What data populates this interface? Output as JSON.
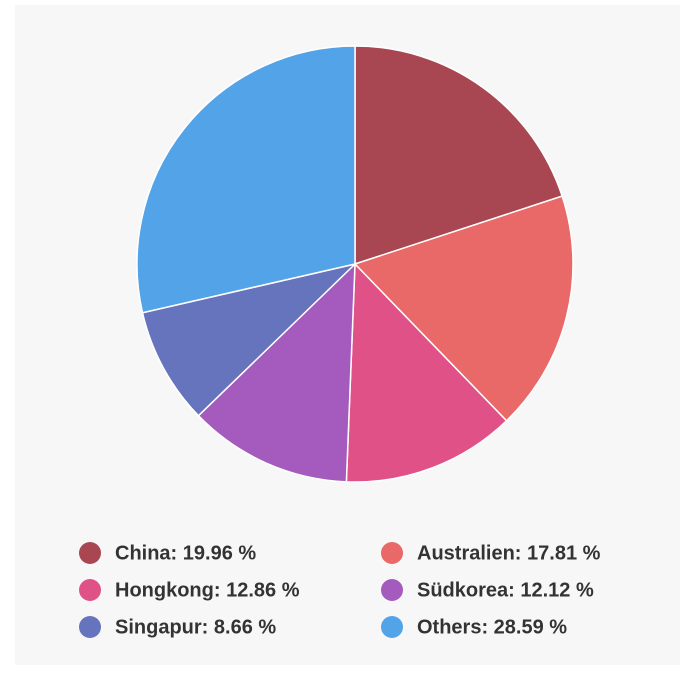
{
  "chart_data": {
    "type": "pie",
    "values": [
      19.96,
      17.81,
      12.86,
      12.12,
      8.66,
      28.59
    ],
    "value_labels": [
      "China: 19.96 %",
      "Australien: 17.81 %",
      "Hongkong: 12.86 %",
      "Südkorea: 12.12 %",
      "Singapur: 8.66 %",
      "Others: 28.59 %"
    ],
    "colors": [
      "#a84751",
      "#e96868",
      "#e05287",
      "#a45bbd",
      "#6674be",
      "#52a3e8"
    ]
  }
}
